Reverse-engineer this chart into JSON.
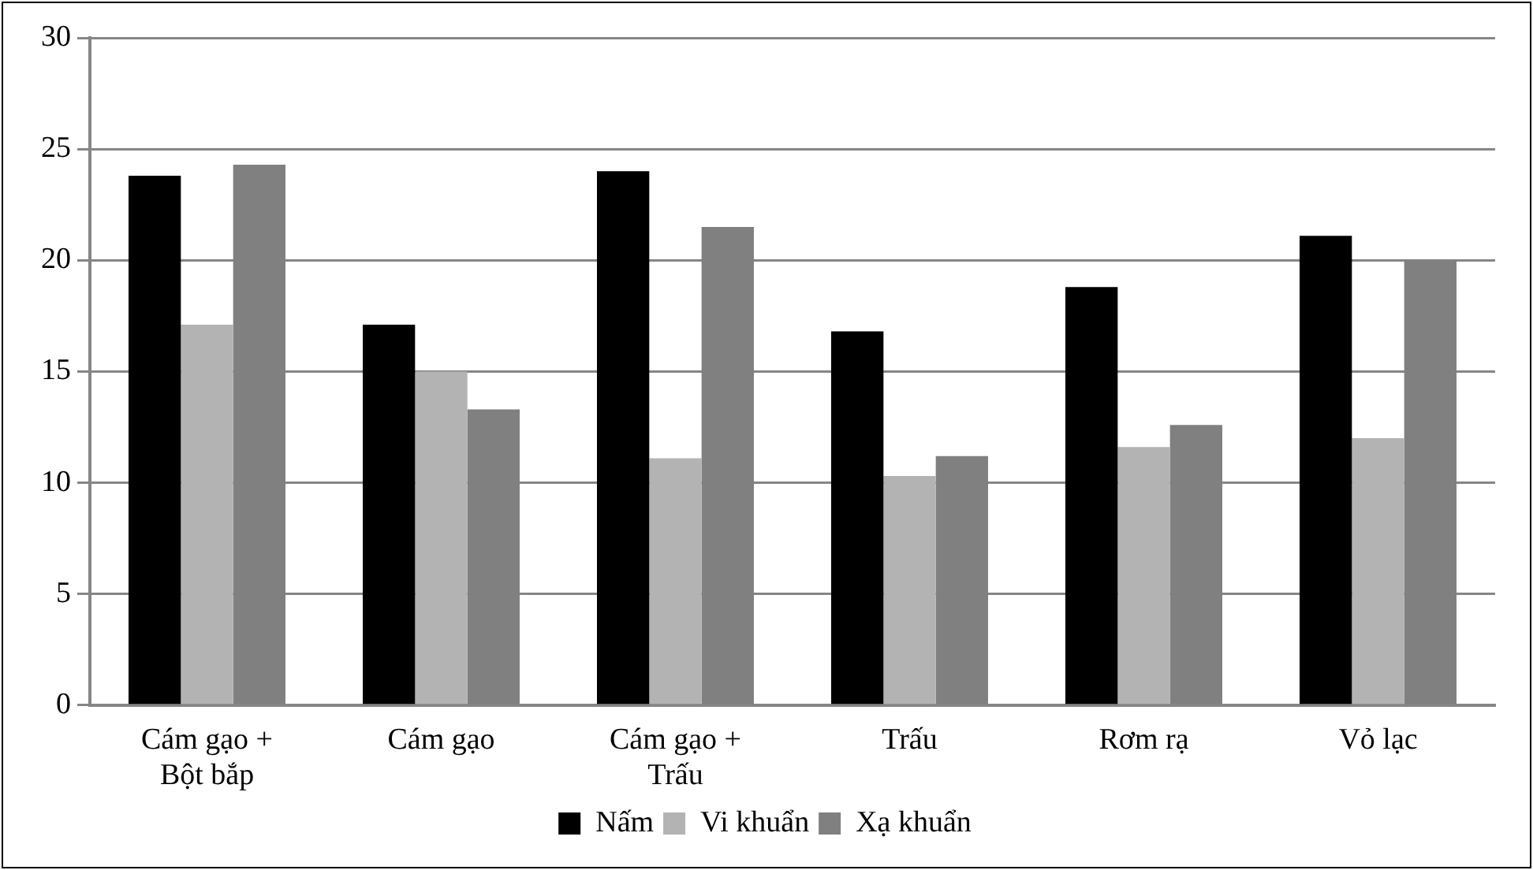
{
  "chart_data": {
    "type": "bar",
    "categories": [
      "Cám gạo +\nBột bắp",
      "Cám gạo",
      "Cám gạo +\nTrấu",
      "Trấu",
      "Rơm rạ",
      "Vỏ lạc"
    ],
    "series": [
      {
        "name": "Nấm",
        "color": "#000000",
        "values": [
          23.8,
          17.1,
          24.0,
          16.8,
          18.8,
          21.1
        ]
      },
      {
        "name": "Vi khuẩn",
        "color": "#b3b3b3",
        "values": [
          17.1,
          15.0,
          11.1,
          10.3,
          11.6,
          12.0
        ]
      },
      {
        "name": "Xạ khuẩn",
        "color": "#808080",
        "values": [
          24.3,
          13.3,
          21.5,
          11.2,
          12.6,
          20.0
        ]
      }
    ],
    "ylim": [
      0,
      30
    ],
    "yticks": [
      0,
      5,
      10,
      15,
      20,
      25,
      30
    ],
    "grid": "y",
    "legend": "bottom"
  }
}
